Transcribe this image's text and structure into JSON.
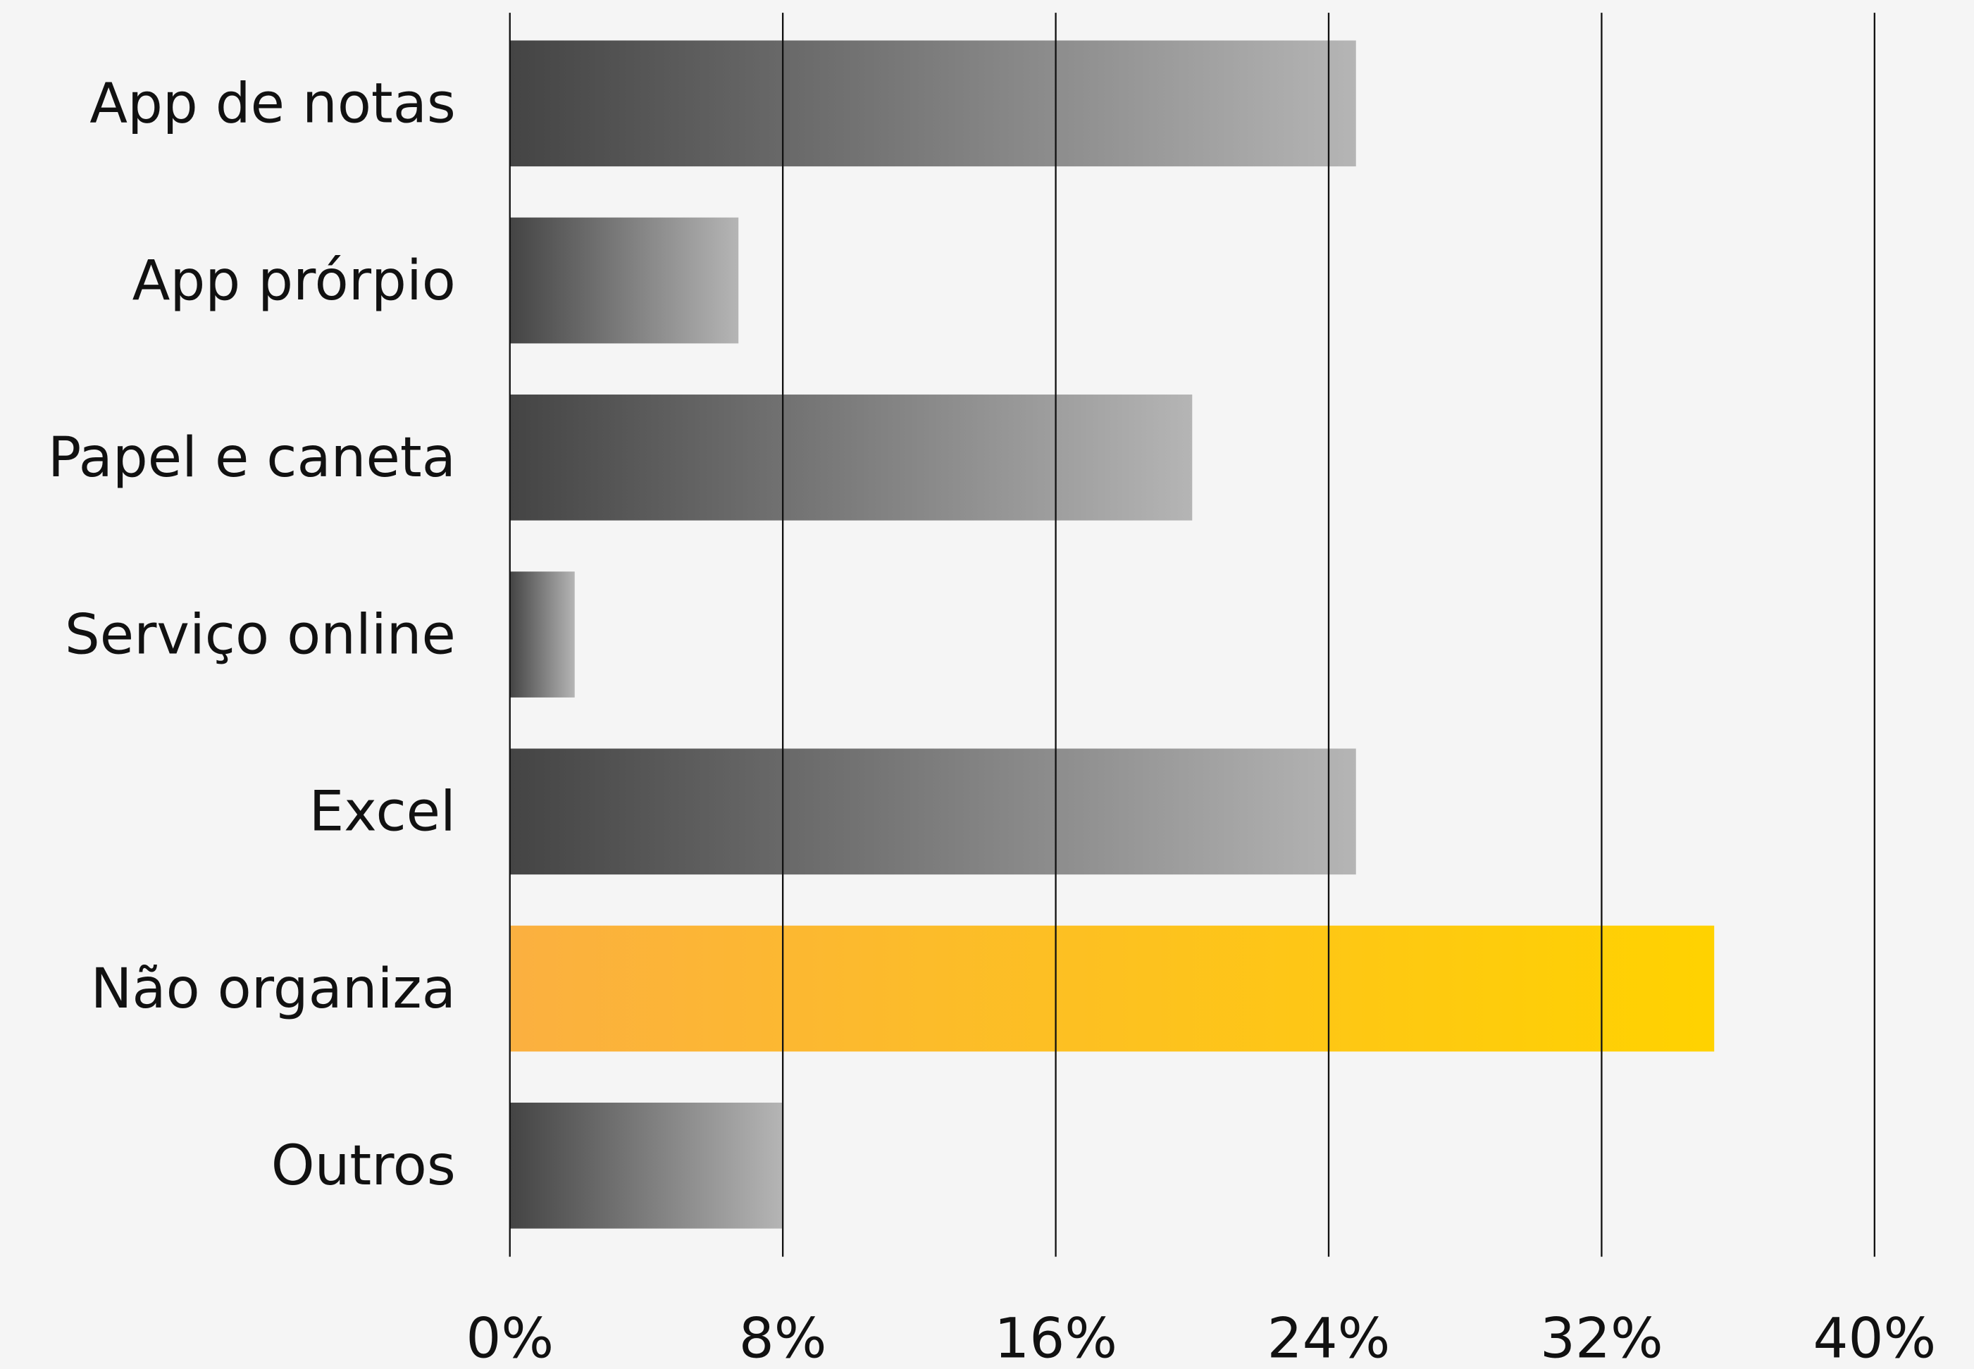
{
  "chart_data": {
    "type": "hbar",
    "categories": [
      "App de notas",
      "App prórpio",
      "Papel e caneta",
      "Serviço online",
      "Excel",
      "Não organiza",
      "Outros"
    ],
    "values": [
      24.8,
      6.7,
      20.0,
      1.9,
      24.8,
      35.3,
      8.0
    ],
    "colors": [
      [
        "#444444",
        "#b5b5b5"
      ],
      [
        "#444444",
        "#b5b5b5"
      ],
      [
        "#444444",
        "#b5b5b5"
      ],
      [
        "#444444",
        "#b5b5b5"
      ],
      [
        "#444444",
        "#b5b5b5"
      ],
      [
        "#fbb040",
        "#ffd200"
      ],
      [
        "#444444",
        "#b5b5b5"
      ]
    ],
    "xlim": [
      0,
      40
    ],
    "xticks": [
      {
        "value": 0,
        "label": "0%"
      },
      {
        "value": 8,
        "label": "8%"
      },
      {
        "value": 16,
        "label": "16%"
      },
      {
        "value": 24,
        "label": "24%"
      },
      {
        "value": 32,
        "label": "32%"
      },
      {
        "value": 40,
        "label": "40%"
      }
    ],
    "grid": true
  }
}
